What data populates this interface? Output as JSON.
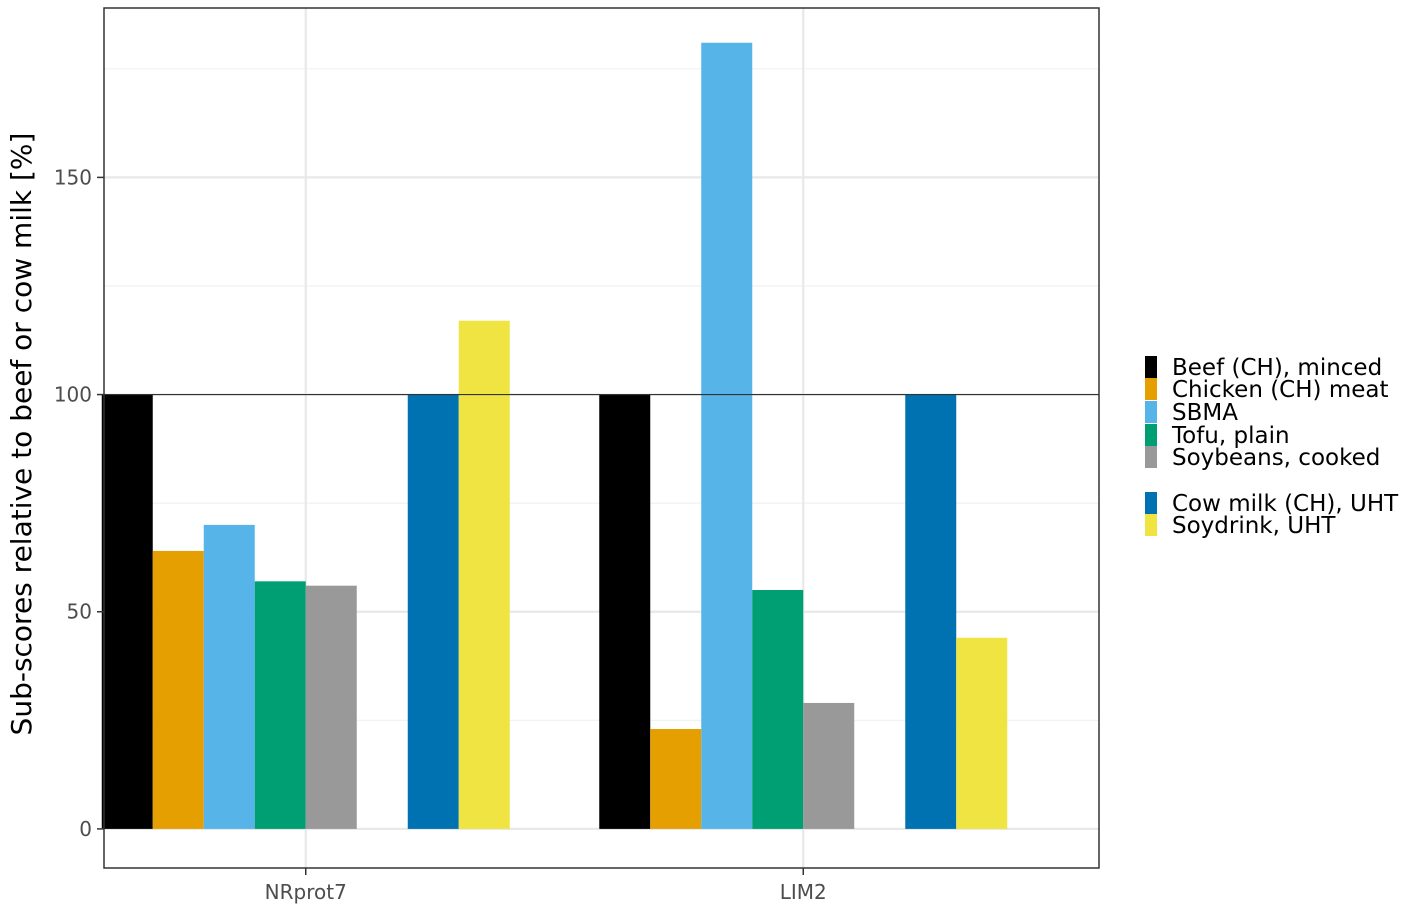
{
  "chart_data": {
    "type": "bar",
    "title": "",
    "xlabel": "",
    "ylabel": "Sub-scores relative to beef or cow milk [%]",
    "categories": [
      "NRprot7",
      "LIM2"
    ],
    "ylim": [
      -9,
      189
    ],
    "y_ticks": [
      0,
      50,
      100,
      150
    ],
    "reference_line": 100,
    "grid": true,
    "legend_position": "right",
    "series": [
      {
        "name": "Beef (CH), minced",
        "color": "#000000",
        "values": [
          100,
          100
        ]
      },
      {
        "name": "Chicken (CH) meat",
        "color": "#E69F00",
        "values": [
          64,
          23
        ]
      },
      {
        "name": "SBMA",
        "color": "#56B4E9",
        "values": [
          70,
          181
        ]
      },
      {
        "name": "Tofu, plain",
        "color": "#009E73",
        "values": [
          57,
          55
        ]
      },
      {
        "name": "Soybeans, cooked",
        "color": "#999999",
        "values": [
          56,
          29
        ]
      },
      {
        "name": "Cow milk (CH), UHT",
        "color": "#0072B2",
        "values": [
          100,
          100
        ]
      },
      {
        "name": "Soydrink, UHT",
        "color": "#F0E442",
        "values": [
          117,
          44
        ]
      }
    ]
  }
}
